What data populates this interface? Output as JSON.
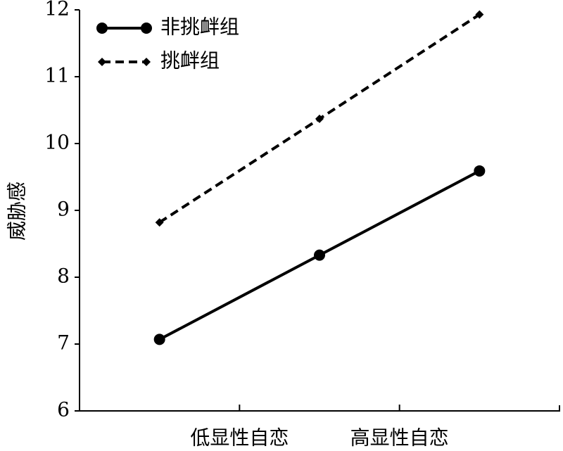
{
  "chart_data": {
    "type": "line",
    "ylabel": "威胁感",
    "categories": [
      "低显性自恋",
      "高显性自恋",
      null
    ],
    "series": [
      {
        "name": "非挑衅组",
        "color": "#000000",
        "dash": "solid",
        "marker": "circle",
        "values": [
          7.07,
          8.33,
          9.59
        ]
      },
      {
        "name": "挑衅组",
        "color": "#000000",
        "dash": "dashed",
        "marker": "diamond",
        "values": [
          8.82,
          10.37,
          11.93
        ]
      }
    ],
    "ylim": [
      6,
      12
    ],
    "yticks": [
      6,
      7,
      8,
      9,
      10,
      11,
      12
    ],
    "grid": false,
    "legend": "upper left"
  }
}
